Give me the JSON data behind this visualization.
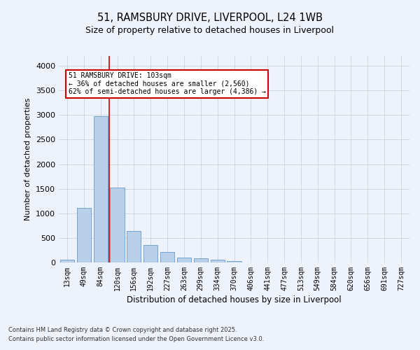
{
  "title_line1": "51, RAMSBURY DRIVE, LIVERPOOL, L24 1WB",
  "title_line2": "Size of property relative to detached houses in Liverpool",
  "xlabel": "Distribution of detached houses by size in Liverpool",
  "ylabel": "Number of detached properties",
  "categories": [
    "13sqm",
    "49sqm",
    "84sqm",
    "120sqm",
    "156sqm",
    "192sqm",
    "227sqm",
    "263sqm",
    "299sqm",
    "334sqm",
    "370sqm",
    "406sqm",
    "441sqm",
    "477sqm",
    "513sqm",
    "549sqm",
    "584sqm",
    "620sqm",
    "656sqm",
    "691sqm",
    "727sqm"
  ],
  "values": [
    55,
    1110,
    2970,
    1520,
    640,
    350,
    210,
    95,
    90,
    60,
    35,
    5,
    0,
    0,
    0,
    0,
    0,
    0,
    0,
    0,
    0
  ],
  "bar_color": "#b8d0ea",
  "bar_edge_color": "#6699cc",
  "vline_color": "#cc0000",
  "annotation_text": "51 RAMSBURY DRIVE: 103sqm\n← 36% of detached houses are smaller (2,560)\n62% of semi-detached houses are larger (4,386) →",
  "annotation_box_color": "#ffffff",
  "annotation_box_edge": "#cc0000",
  "ylim": [
    0,
    4200
  ],
  "yticks": [
    0,
    500,
    1000,
    1500,
    2000,
    2500,
    3000,
    3500,
    4000
  ],
  "footer_line1": "Contains HM Land Registry data © Crown copyright and database right 2025.",
  "footer_line2": "Contains public sector information licensed under the Open Government Licence v3.0.",
  "bg_color": "#eef3fb",
  "plot_bg_color": "#eef3fb"
}
